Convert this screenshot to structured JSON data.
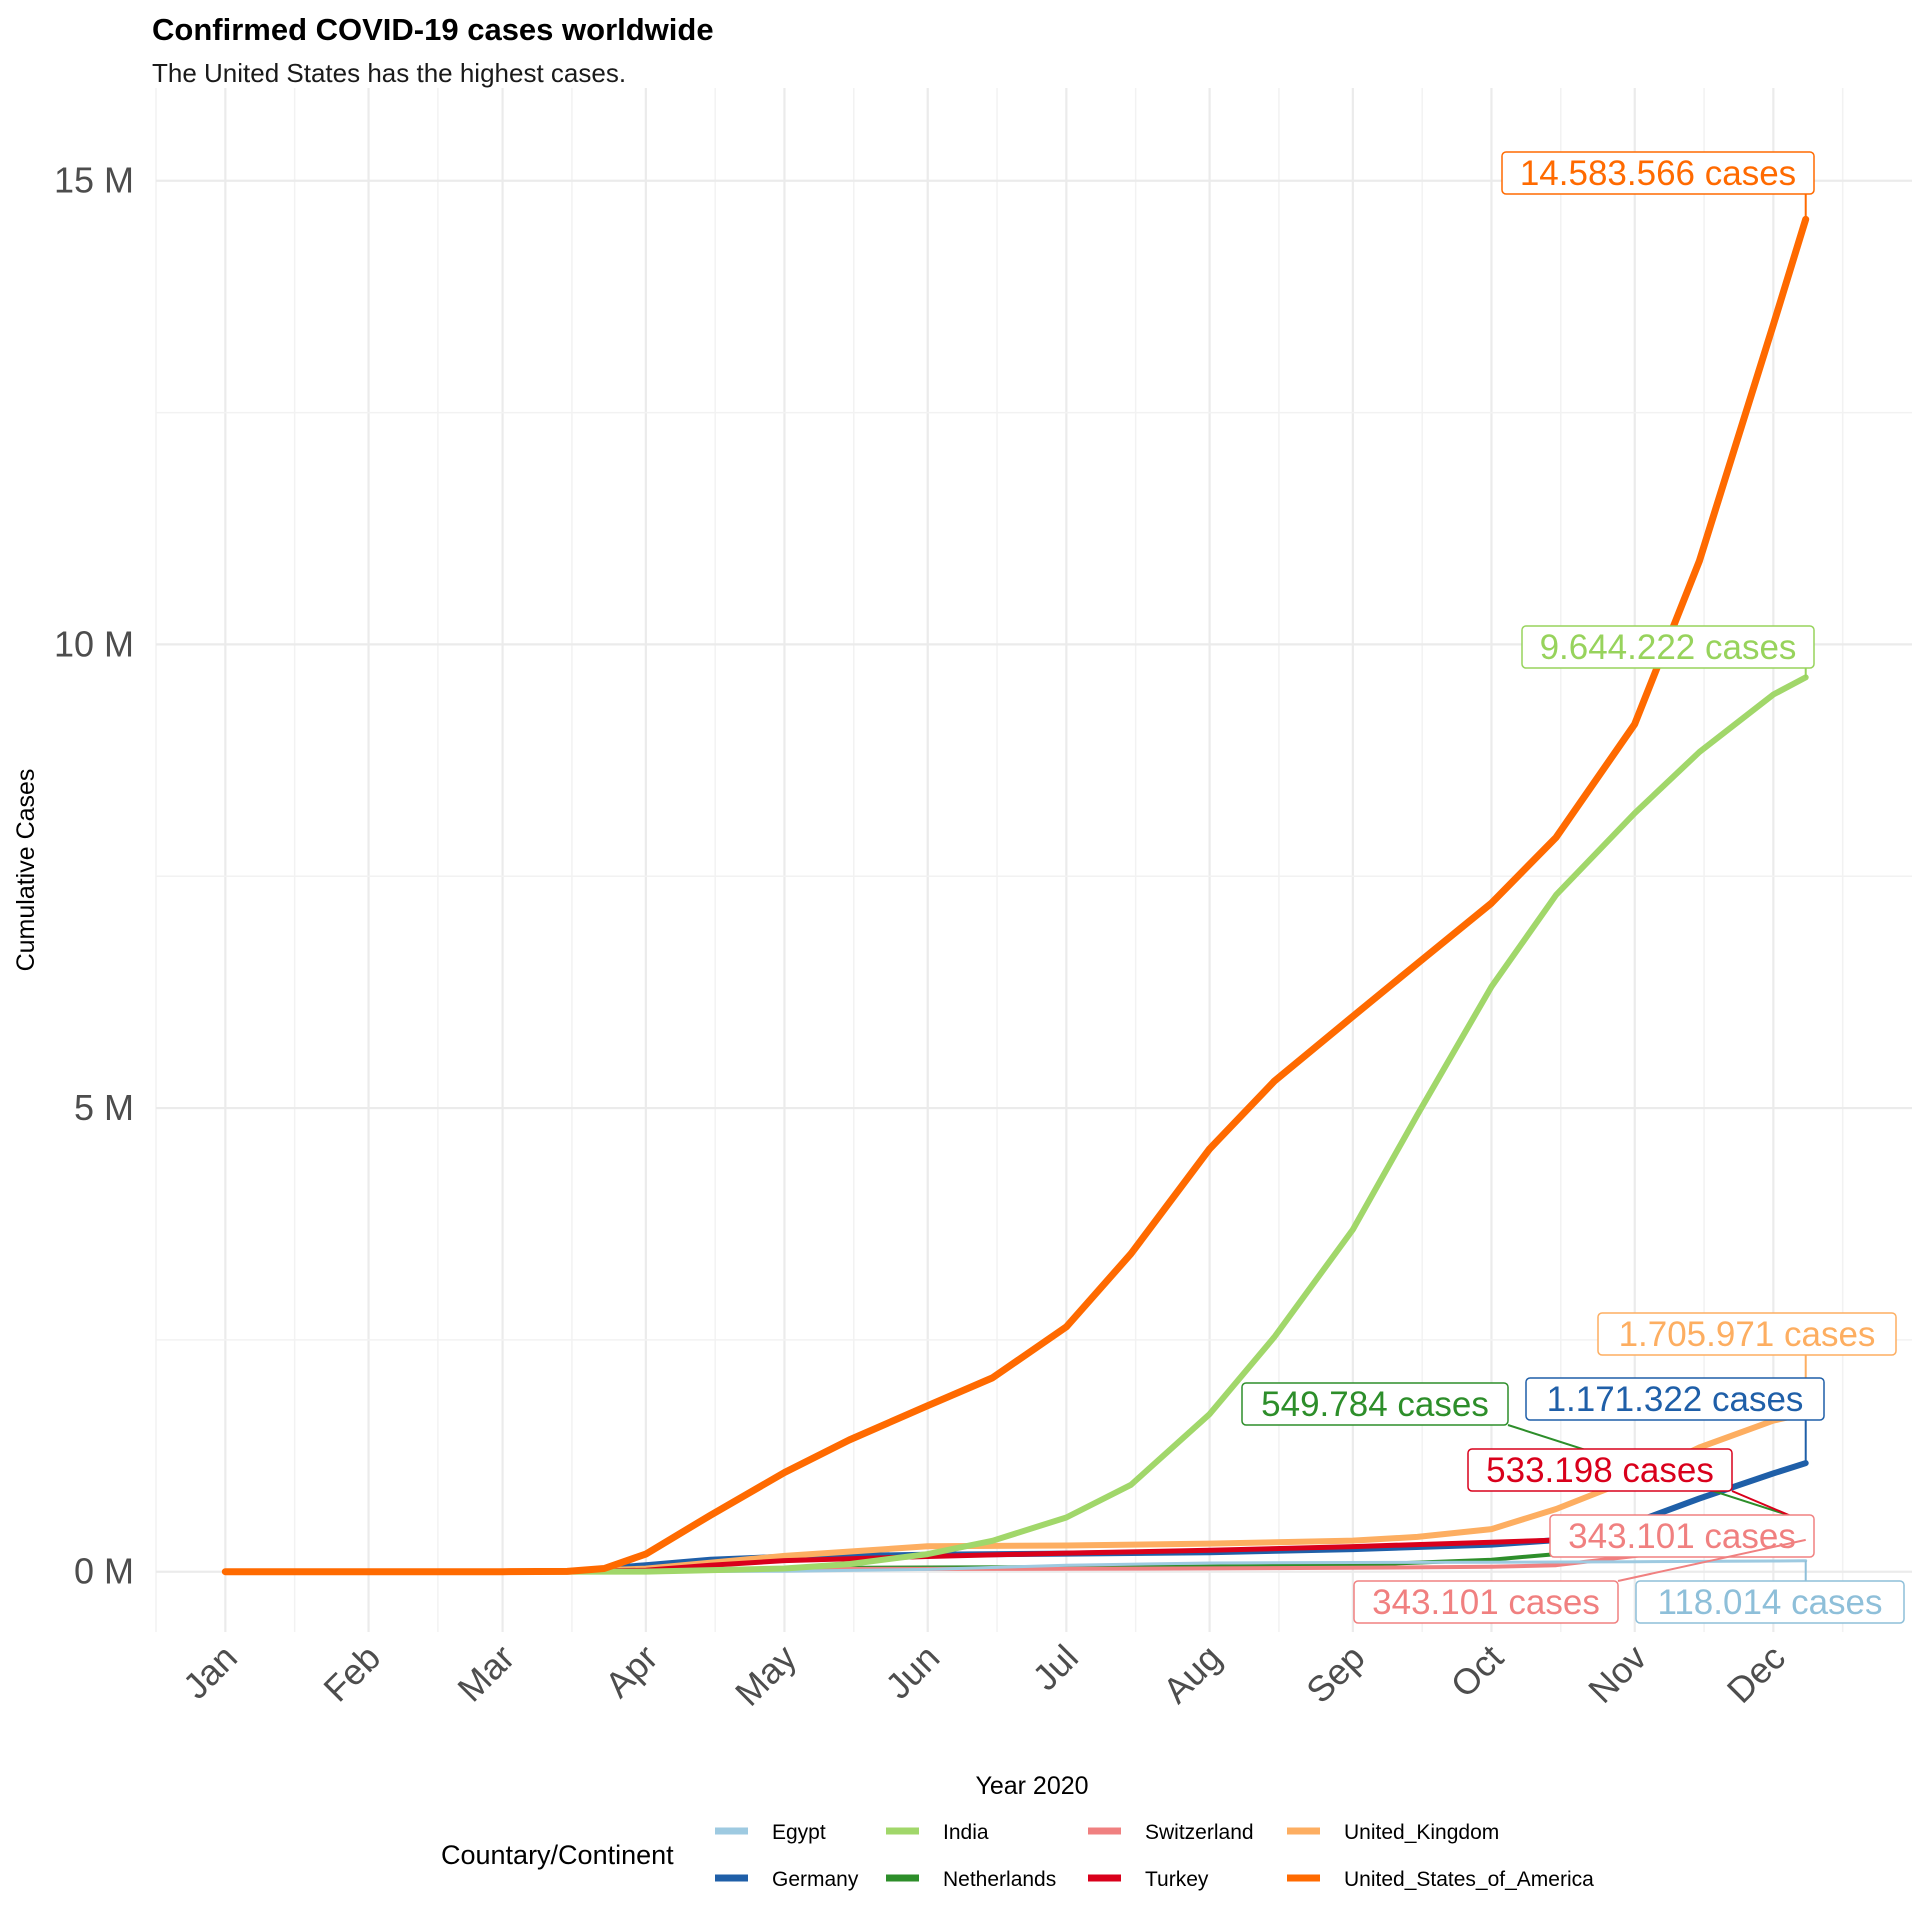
{
  "chart_data": {
    "type": "line",
    "title": "Confirmed COVID-19 cases worldwide",
    "subtitle": "The United States has the highest cases.",
    "xlabel": "Year 2020",
    "ylabel": "Cumulative Cases",
    "legend_title": "Countary/Continent",
    "legend_position": "bottom",
    "grid": true,
    "x_ticks": [
      "Jan",
      "Feb",
      "Mar",
      "Apr",
      "May",
      "Jun",
      "Jul",
      "Aug",
      "Sep",
      "Oct",
      "Nov",
      "Dec"
    ],
    "y_ticks": [
      {
        "value": 0,
        "label": "0 M"
      },
      {
        "value": 5000000,
        "label": "5 M"
      },
      {
        "value": 10000000,
        "label": "10 M"
      },
      {
        "value": 15000000,
        "label": "15 M"
      }
    ],
    "ylim": [
      -650000,
      16000000
    ],
    "xlim": [
      "2019-12-17",
      "2020-12-31"
    ],
    "series": [
      {
        "name": "Egypt",
        "color": "#9ecae1",
        "width": 3,
        "label": "118.014 cases",
        "points": [
          [
            "2020-01-01",
            0
          ],
          [
            "2020-03-01",
            0
          ],
          [
            "2020-04-01",
            700
          ],
          [
            "2020-05-01",
            5500
          ],
          [
            "2020-06-01",
            25000
          ],
          [
            "2020-07-01",
            70000
          ],
          [
            "2020-08-01",
            94000
          ],
          [
            "2020-09-01",
            99000
          ],
          [
            "2020-10-01",
            103000
          ],
          [
            "2020-11-01",
            108000
          ],
          [
            "2020-12-01",
            116000
          ],
          [
            "2020-12-08",
            118014
          ]
        ]
      },
      {
        "name": "Germany",
        "color": "#1f5fa8",
        "width": 6,
        "label": "1.171.322 cases",
        "points": [
          [
            "2020-01-01",
            0
          ],
          [
            "2020-03-01",
            100
          ],
          [
            "2020-03-15",
            5000
          ],
          [
            "2020-04-01",
            70000
          ],
          [
            "2020-04-15",
            130000
          ],
          [
            "2020-05-01",
            162000
          ],
          [
            "2020-06-01",
            182000
          ],
          [
            "2020-07-01",
            195000
          ],
          [
            "2020-08-01",
            210000
          ],
          [
            "2020-09-01",
            244000
          ],
          [
            "2020-10-01",
            292000
          ],
          [
            "2020-10-15",
            341000
          ],
          [
            "2020-11-01",
            532000
          ],
          [
            "2020-11-15",
            790000
          ],
          [
            "2020-12-01",
            1060000
          ],
          [
            "2020-12-08",
            1171322
          ]
        ]
      },
      {
        "name": "India",
        "color": "#a1d76a",
        "width": 6,
        "label": "9.644.222 cases",
        "points": [
          [
            "2020-01-01",
            0
          ],
          [
            "2020-03-01",
            3
          ],
          [
            "2020-04-01",
            1600
          ],
          [
            "2020-05-01",
            35000
          ],
          [
            "2020-05-15",
            82000
          ],
          [
            "2020-06-01",
            190000
          ],
          [
            "2020-06-15",
            333000
          ],
          [
            "2020-07-01",
            585000
          ],
          [
            "2020-07-15",
            937000
          ],
          [
            "2020-08-01",
            1700000
          ],
          [
            "2020-08-15",
            2530000
          ],
          [
            "2020-09-01",
            3690000
          ],
          [
            "2020-09-15",
            4930000
          ],
          [
            "2020-10-01",
            6310000
          ],
          [
            "2020-10-15",
            7300000
          ],
          [
            "2020-11-01",
            8180000
          ],
          [
            "2020-11-15",
            8840000
          ],
          [
            "2020-12-01",
            9460000
          ],
          [
            "2020-12-08",
            9644222
          ]
        ]
      },
      {
        "name": "Netherlands",
        "color": "#2d8e2a",
        "width": 4,
        "label": "549.784 cases",
        "points": [
          [
            "2020-01-01",
            0
          ],
          [
            "2020-03-01",
            10
          ],
          [
            "2020-04-01",
            13000
          ],
          [
            "2020-05-01",
            39000
          ],
          [
            "2020-06-01",
            46000
          ],
          [
            "2020-07-01",
            50000
          ],
          [
            "2020-08-01",
            55000
          ],
          [
            "2020-09-01",
            71000
          ],
          [
            "2020-10-01",
            130000
          ],
          [
            "2020-10-15",
            190000
          ],
          [
            "2020-11-01",
            350000
          ],
          [
            "2020-11-15",
            460000
          ],
          [
            "2020-12-01",
            530000
          ],
          [
            "2020-12-08",
            549784
          ]
        ]
      },
      {
        "name": "Switzerland",
        "color": "#f08080",
        "width": 4,
        "label": "343.101 cases",
        "points": [
          [
            "2020-01-01",
            0
          ],
          [
            "2020-03-01",
            20
          ],
          [
            "2020-04-01",
            17000
          ],
          [
            "2020-05-01",
            29700
          ],
          [
            "2020-06-01",
            30900
          ],
          [
            "2020-07-01",
            31800
          ],
          [
            "2020-08-01",
            35500
          ],
          [
            "2020-09-01",
            42000
          ],
          [
            "2020-10-01",
            53000
          ],
          [
            "2020-10-15",
            70000
          ],
          [
            "2020-11-01",
            170000
          ],
          [
            "2020-11-15",
            260000
          ],
          [
            "2020-12-01",
            330000
          ],
          [
            "2020-12-08",
            343101
          ]
        ]
      },
      {
        "name": "Turkey",
        "color": "#d9001b",
        "width": 5,
        "label": "533.198 cases",
        "points": [
          [
            "2020-01-01",
            0
          ],
          [
            "2020-03-10",
            0
          ],
          [
            "2020-04-01",
            15000
          ],
          [
            "2020-04-15",
            69000
          ],
          [
            "2020-05-01",
            120000
          ],
          [
            "2020-06-01",
            164000
          ],
          [
            "2020-07-01",
            201000
          ],
          [
            "2020-08-01",
            231000
          ],
          [
            "2020-09-01",
            271000
          ],
          [
            "2020-10-01",
            318000
          ],
          [
            "2020-10-15",
            341000
          ],
          [
            "2020-11-01",
            374000
          ],
          [
            "2020-11-15",
            410000
          ],
          [
            "2020-11-25",
            453000
          ],
          [
            "2020-12-01",
            490000
          ],
          [
            "2020-12-08",
            533198
          ]
        ]
      },
      {
        "name": "United_Kingdom",
        "color": "#fdae61",
        "width": 6,
        "label": "1.705.971 cases",
        "points": [
          [
            "2020-01-01",
            0
          ],
          [
            "2020-03-01",
            30
          ],
          [
            "2020-03-15",
            1400
          ],
          [
            "2020-04-01",
            34000
          ],
          [
            "2020-05-01",
            171000
          ],
          [
            "2020-06-01",
            274000
          ],
          [
            "2020-07-01",
            283000
          ],
          [
            "2020-08-01",
            303000
          ],
          [
            "2020-09-01",
            336000
          ],
          [
            "2020-09-15",
            375000
          ],
          [
            "2020-10-01",
            460000
          ],
          [
            "2020-10-15",
            676000
          ],
          [
            "2020-11-01",
            1010000
          ],
          [
            "2020-11-15",
            1340000
          ],
          [
            "2020-12-01",
            1630000
          ],
          [
            "2020-12-08",
            1705971
          ]
        ]
      },
      {
        "name": "United_States_of_America",
        "color": "#ff6a00",
        "width": 7,
        "label": "14.583.566 cases",
        "points": [
          [
            "2020-01-01",
            0
          ],
          [
            "2020-03-01",
            30
          ],
          [
            "2020-03-15",
            3000
          ],
          [
            "2020-03-23",
            35000
          ],
          [
            "2020-04-01",
            190000
          ],
          [
            "2020-04-15",
            610000
          ],
          [
            "2020-05-01",
            1070000
          ],
          [
            "2020-05-15",
            1420000
          ],
          [
            "2020-06-01",
            1790000
          ],
          [
            "2020-06-15",
            2090000
          ],
          [
            "2020-07-01",
            2640000
          ],
          [
            "2020-07-15",
            3430000
          ],
          [
            "2020-08-01",
            4560000
          ],
          [
            "2020-08-15",
            5290000
          ],
          [
            "2020-09-01",
            5990000
          ],
          [
            "2020-09-15",
            6560000
          ],
          [
            "2020-10-01",
            7210000
          ],
          [
            "2020-10-15",
            7920000
          ],
          [
            "2020-11-01",
            9140000
          ],
          [
            "2020-11-15",
            10900000
          ],
          [
            "2020-12-01",
            13450000
          ],
          [
            "2020-12-08",
            14583566
          ]
        ]
      }
    ]
  }
}
